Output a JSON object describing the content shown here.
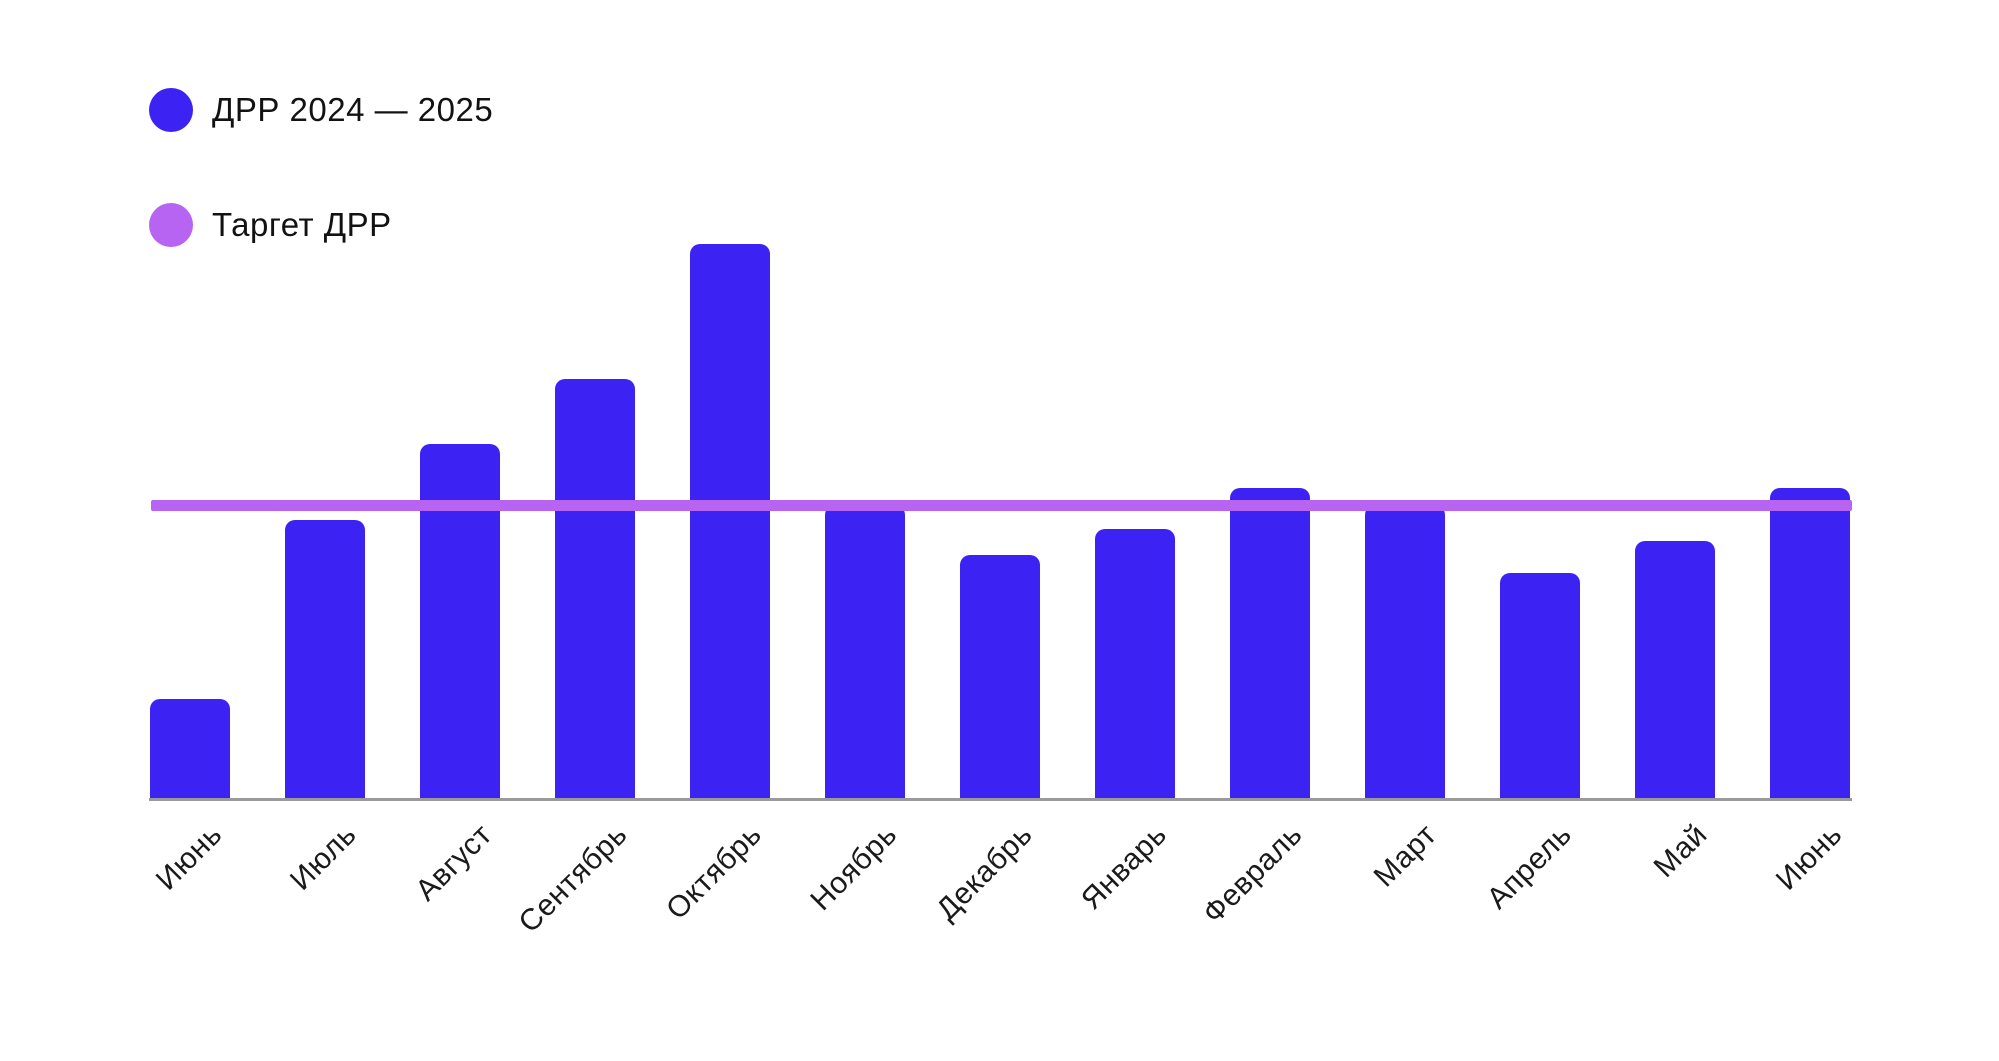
{
  "legend": {
    "items": [
      {
        "label": "ДРР 2024 — 2025",
        "color": "#3d23f3"
      },
      {
        "label": "Таргет ДРР",
        "color": "#b864f3"
      }
    ]
  },
  "chart_data": {
    "type": "bar",
    "title": "",
    "xlabel": "",
    "ylabel": "",
    "categories": [
      "Июнь",
      "Июль",
      "Август",
      "Сентябрь",
      "Октябрь",
      "Ноябрь",
      "Декабрь",
      "Январь",
      "Февраль",
      "Март",
      "Апрель",
      "Май",
      "Июнь"
    ],
    "series": [
      {
        "name": "ДРР 2024 — 2025",
        "color": "#3d23f3",
        "values": [
          3.4,
          9.5,
          12.1,
          14.3,
          18.9,
          10.0,
          8.3,
          9.2,
          10.6,
          10.0,
          7.7,
          8.8,
          10.6
        ]
      }
    ],
    "target_line": {
      "name": "Таргет ДРР",
      "value": 10.0,
      "color": "#b864f3"
    },
    "ylim": [
      0,
      27
    ],
    "y_axis_visible": false,
    "x_tick_rotation_deg": -45,
    "grid": false,
    "legend_position": "top-left",
    "axis_line_color": "#9a9a9a"
  }
}
